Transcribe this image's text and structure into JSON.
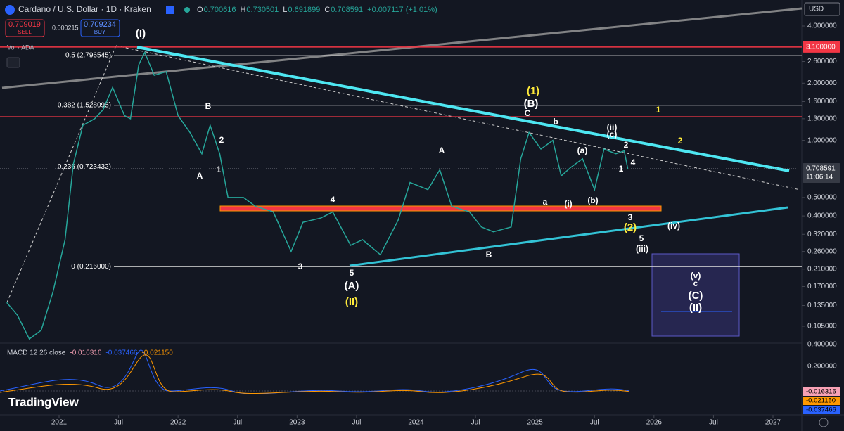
{
  "header": {
    "symbol": "Cardano / U.S. Dollar · 1D · Kraken",
    "ohlc": [
      {
        "k": "O",
        "v": "0.700616"
      },
      {
        "k": "H",
        "v": "0.730501"
      },
      {
        "k": "L",
        "v": "0.691899"
      },
      {
        "k": "C",
        "v": "0.708591"
      }
    ],
    "change": "+0.007117 (+1.01%)",
    "sell_price": "0.709019",
    "sell": "SELL",
    "spread": "0.000215",
    "buy_price": "0.709234",
    "buy": "BUY",
    "volume": "Vol · ADA",
    "currency": "USD"
  },
  "price_axis": {
    "log_scale": true,
    "ticks": [
      {
        "value": 4,
        "label": "4.000000"
      },
      {
        "value": 2.6,
        "label": "2.600000"
      },
      {
        "value": 2,
        "label": "2.000000"
      },
      {
        "value": 1.6,
        "label": "1.600000"
      },
      {
        "value": 1.3,
        "label": "1.300000"
      },
      {
        "value": 1,
        "label": "1.000000"
      },
      {
        "value": 0.5,
        "label": "0.500000"
      },
      {
        "value": 0.4,
        "label": "0.400000"
      },
      {
        "value": 0.32,
        "label": "0.320000"
      },
      {
        "value": 0.26,
        "label": "0.260000"
      },
      {
        "value": 0.21,
        "label": "0.210000"
      },
      {
        "value": 0.17,
        "label": "0.170000"
      },
      {
        "value": 0.135,
        "label": "0.135000"
      },
      {
        "value": 0.105,
        "label": "0.105000"
      }
    ],
    "alert": {
      "value": 3.1,
      "label": "3.100000"
    },
    "last": {
      "value": 0.708591,
      "label": "0.708591",
      "countdown": "11:06:14"
    }
  },
  "time_axis": {
    "ticks": [
      {
        "value": 2021,
        "label": "2021"
      },
      {
        "value": 2021.5,
        "label": "Jul"
      },
      {
        "value": 2022,
        "label": "2022"
      },
      {
        "value": 2022.5,
        "label": "Jul"
      },
      {
        "value": 2023,
        "label": "2023"
      },
      {
        "value": 2023.5,
        "label": "Jul"
      },
      {
        "value": 2024,
        "label": "2024"
      },
      {
        "value": 2024.5,
        "label": "Jul"
      },
      {
        "value": 2025,
        "label": "2025"
      },
      {
        "value": 2025.5,
        "label": "Jul"
      },
      {
        "value": 2026,
        "label": "2026"
      },
      {
        "value": 2026.5,
        "label": "Jul"
      },
      {
        "value": 2027,
        "label": "2027"
      }
    ]
  },
  "price": {
    "type": "line",
    "color": "#26a69a",
    "x": [
      2020.56,
      2020.65,
      2020.75,
      2020.85,
      2020.95,
      2021.05,
      2021.12,
      2021.2,
      2021.3,
      2021.37,
      2021.45,
      2021.55,
      2021.6,
      2021.67,
      2021.72,
      2021.8,
      2021.9,
      2022.0,
      2022.1,
      2022.2,
      2022.27,
      2022.35,
      2022.42,
      2022.55,
      2022.65,
      2022.8,
      2022.95,
      2023.05,
      2023.2,
      2023.3,
      2023.45,
      2023.55,
      2023.7,
      2023.85,
      2023.95,
      2024.1,
      2024.2,
      2024.3,
      2024.45,
      2024.55,
      2024.65,
      2024.8,
      2024.88,
      2024.95,
      2025.05,
      2025.15,
      2025.22,
      2025.3,
      2025.4,
      2025.5,
      2025.58,
      2025.68,
      2025.75,
      2025.78
    ],
    "values": [
      0.14,
      0.12,
      0.09,
      0.1,
      0.16,
      0.3,
      0.75,
      1.2,
      1.3,
      1.45,
      1.9,
      1.35,
      1.3,
      2.5,
      2.9,
      2.2,
      2.3,
      1.35,
      1.1,
      0.85,
      1.2,
      0.85,
      0.5,
      0.5,
      0.45,
      0.42,
      0.26,
      0.37,
      0.39,
      0.42,
      0.28,
      0.3,
      0.25,
      0.38,
      0.6,
      0.55,
      0.7,
      0.45,
      0.42,
      0.35,
      0.33,
      0.35,
      0.8,
      1.1,
      0.9,
      1.0,
      0.65,
      0.72,
      0.8,
      0.55,
      0.9,
      0.85,
      0.88,
      0.708591
    ]
  },
  "fib_levels": [
    {
      "value": 2.796545,
      "label": "0.5 (2.796545)"
    },
    {
      "value": 1.528095,
      "label": "0.382 (1.528095)"
    },
    {
      "value": 0.723432,
      "label": "0.236 (0.723432)"
    },
    {
      "value": 0.216,
      "label": "0 (0.216000)"
    }
  ],
  "resistance_levels": [
    {
      "value": 3.1,
      "color": "#f23645"
    },
    {
      "value": 1.33,
      "color": "#f23645"
    }
  ],
  "wave_labels": [
    {
      "text": "(I)",
      "color": "#ffffff"
    },
    {
      "text": "B",
      "color": "#ffffff"
    },
    {
      "text": "2",
      "color": "#ffffff"
    },
    {
      "text": "A",
      "color": "#ffffff"
    },
    {
      "text": "1",
      "color": "#ffffff"
    },
    {
      "text": "4",
      "color": "#ffffff"
    },
    {
      "text": "3",
      "color": "#ffffff"
    },
    {
      "text": "5",
      "color": "#ffffff"
    },
    {
      "text": "(A)",
      "color": "#ffffff"
    },
    {
      "text": "(II)",
      "color": "#ffeb3b"
    },
    {
      "text": "A",
      "color": "#ffffff"
    },
    {
      "text": "B",
      "color": "#ffffff"
    },
    {
      "text": "(1)",
      "color": "#ffeb3b"
    },
    {
      "text": "(B)",
      "color": "#ffffff"
    },
    {
      "text": "C",
      "color": "#ffffff"
    },
    {
      "text": "b",
      "color": "#ffffff"
    },
    {
      "text": "a",
      "color": "#ffffff"
    },
    {
      "text": "(i)",
      "color": "#ffffff"
    },
    {
      "text": "(a)",
      "color": "#ffffff"
    },
    {
      "text": "(b)",
      "color": "#ffffff"
    },
    {
      "text": "(ii)",
      "color": "#ffffff"
    },
    {
      "text": "(c)",
      "color": "#ffffff"
    },
    {
      "text": "2",
      "color": "#ffffff"
    },
    {
      "text": "1",
      "color": "#ffffff"
    },
    {
      "text": "4",
      "color": "#ffffff"
    },
    {
      "text": "3",
      "color": "#ffffff"
    },
    {
      "text": "(2)",
      "color": "#ffeb3b"
    },
    {
      "text": "5",
      "color": "#ffffff"
    },
    {
      "text": "(iii)",
      "color": "#ffffff"
    },
    {
      "text": "(iv)",
      "color": "#ffffff"
    },
    {
      "text": "1",
      "color": "#ffeb3b"
    },
    {
      "text": "2",
      "color": "#ffeb3b"
    },
    {
      "text": "(v)",
      "color": "#ffffff"
    },
    {
      "text": "c",
      "color": "#ffffff"
    },
    {
      "text": "(C)",
      "color": "#ffffff"
    },
    {
      "text": "(II)",
      "color": "#ffffff"
    }
  ],
  "macd": {
    "title": "MACD 12 26 close",
    "values": [
      {
        "label": "-0.016316",
        "color": "#f7a1b5"
      },
      {
        "label": "-0.037466",
        "color": "#2962ff"
      },
      {
        "label": "-0.021150",
        "color": "#ff9800"
      }
    ],
    "axis": [
      "0.400000",
      "0.200000"
    ]
  },
  "brand": "TradingView"
}
